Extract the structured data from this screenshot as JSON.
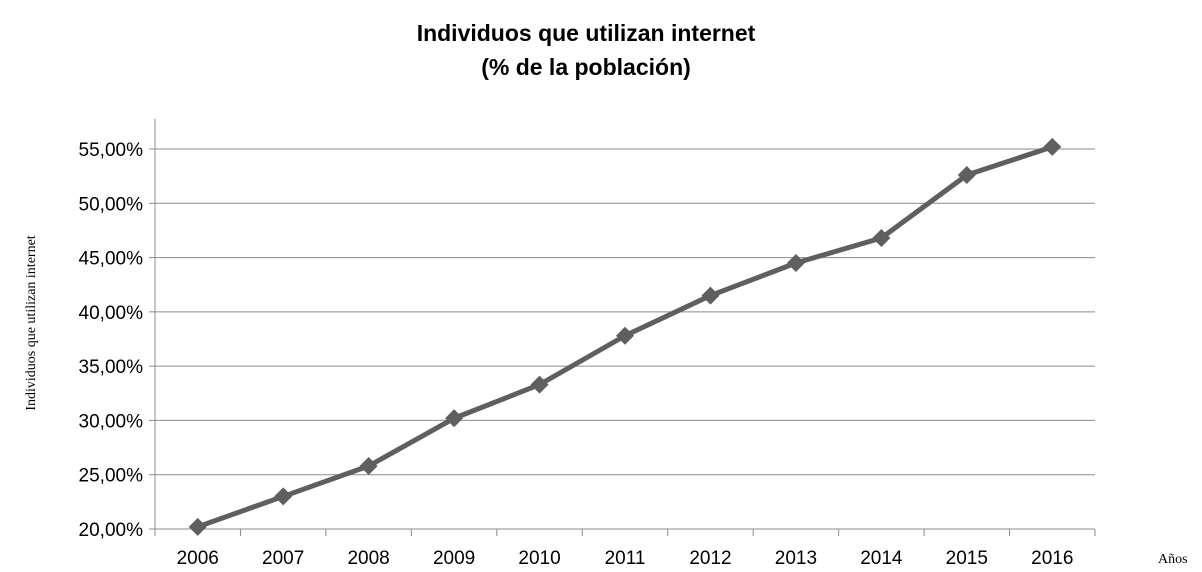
{
  "chart_data": {
    "type": "line",
    "title_lines": [
      "Individuos que utilizan internet",
      "(% de la población)"
    ],
    "xlabel": "Años",
    "ylabel": "Individuos que utilizan internet",
    "categories": [
      "2006",
      "2007",
      "2008",
      "2009",
      "2010",
      "2011",
      "2012",
      "2013",
      "2014",
      "2015",
      "2016"
    ],
    "series": [
      {
        "values": [
          20.2,
          23.0,
          25.8,
          30.2,
          33.3,
          37.8,
          41.5,
          44.5,
          46.8,
          52.6,
          55.2
        ],
        "color": "#5f5f5f",
        "marker": "diamond"
      }
    ],
    "ylim": [
      20,
      55
    ],
    "ytick_step": 5,
    "ytick_labels": [
      "20,00%",
      "25,00%",
      "30,00%",
      "35,00%",
      "40,00%",
      "45,00%",
      "50,00%",
      "55,00%"
    ],
    "grid": true
  }
}
